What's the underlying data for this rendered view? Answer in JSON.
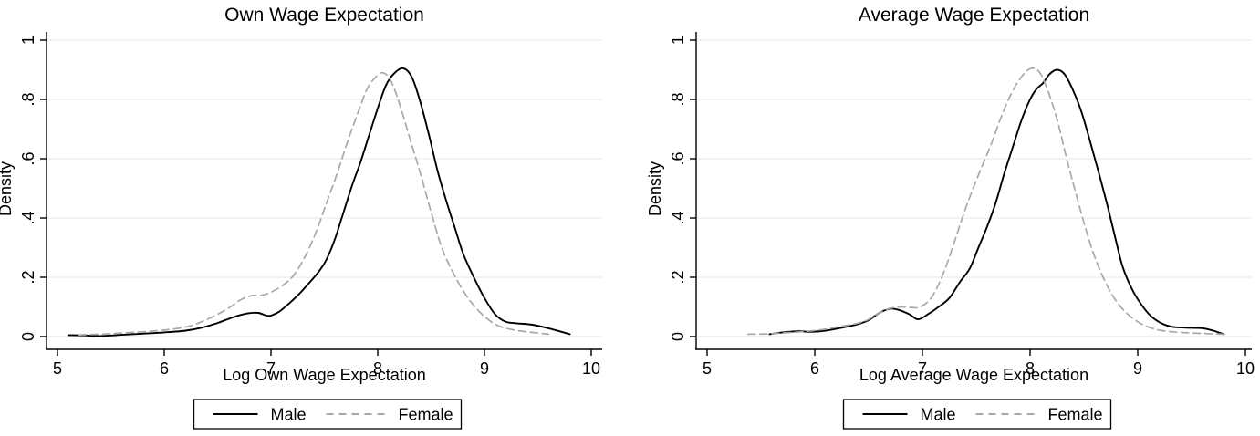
{
  "page": {
    "background": "#ffffff"
  },
  "chart_data": [
    {
      "type": "line",
      "title": "Own Wage Expectation",
      "xlabel": "Log Own Wage Expectation",
      "ylabel": "Density",
      "x_ticks": [
        "5",
        "6",
        "7",
        "8",
        "9",
        "10"
      ],
      "y_ticks": [
        "0",
        ".2",
        ".4",
        ".6",
        ".8",
        "1"
      ],
      "x_tick_values": [
        5,
        6,
        7,
        8,
        9,
        10
      ],
      "y_tick_values": [
        0,
        0.2,
        0.4,
        0.6,
        0.8,
        1
      ],
      "xlim": [
        4.9,
        10.1
      ],
      "ylim": [
        0,
        1
      ],
      "grid": "horizontal",
      "legend_position": "bottom",
      "colors": {
        "male": "#000000",
        "female": "#a8a8a8",
        "grid": "#e7e7e7",
        "axis": "#000000",
        "legend_border": "#000000"
      },
      "series": [
        {
          "name": "Male",
          "style": "solid",
          "color": "#000000",
          "points": [
            [
              5.1,
              0.005
            ],
            [
              5.25,
              0.004
            ],
            [
              5.4,
              0.002
            ],
            [
              5.6,
              0.006
            ],
            [
              5.8,
              0.01
            ],
            [
              6.0,
              0.014
            ],
            [
              6.2,
              0.02
            ],
            [
              6.35,
              0.03
            ],
            [
              6.5,
              0.046
            ],
            [
              6.65,
              0.066
            ],
            [
              6.78,
              0.078
            ],
            [
              6.88,
              0.08
            ],
            [
              6.98,
              0.07
            ],
            [
              7.08,
              0.085
            ],
            [
              7.18,
              0.115
            ],
            [
              7.28,
              0.15
            ],
            [
              7.38,
              0.19
            ],
            [
              7.46,
              0.225
            ],
            [
              7.52,
              0.26
            ],
            [
              7.6,
              0.33
            ],
            [
              7.68,
              0.42
            ],
            [
              7.76,
              0.51
            ],
            [
              7.84,
              0.59
            ],
            [
              7.92,
              0.68
            ],
            [
              8.0,
              0.77
            ],
            [
              8.08,
              0.85
            ],
            [
              8.16,
              0.89
            ],
            [
              8.24,
              0.905
            ],
            [
              8.32,
              0.875
            ],
            [
              8.4,
              0.79
            ],
            [
              8.48,
              0.68
            ],
            [
              8.56,
              0.56
            ],
            [
              8.64,
              0.46
            ],
            [
              8.72,
              0.37
            ],
            [
              8.8,
              0.28
            ],
            [
              8.9,
              0.2
            ],
            [
              9.0,
              0.13
            ],
            [
              9.1,
              0.075
            ],
            [
              9.2,
              0.05
            ],
            [
              9.3,
              0.045
            ],
            [
              9.45,
              0.04
            ],
            [
              9.6,
              0.028
            ],
            [
              9.7,
              0.018
            ],
            [
              9.8,
              0.008
            ]
          ]
        },
        {
          "name": "Female",
          "style": "dashed",
          "color": "#a8a8a8",
          "points": [
            [
              5.2,
              0.006
            ],
            [
              5.4,
              0.008
            ],
            [
              5.6,
              0.012
            ],
            [
              5.8,
              0.016
            ],
            [
              6.0,
              0.022
            ],
            [
              6.2,
              0.032
            ],
            [
              6.35,
              0.05
            ],
            [
              6.5,
              0.075
            ],
            [
              6.62,
              0.1
            ],
            [
              6.72,
              0.125
            ],
            [
              6.82,
              0.138
            ],
            [
              6.92,
              0.14
            ],
            [
              7.0,
              0.15
            ],
            [
              7.12,
              0.175
            ],
            [
              7.22,
              0.21
            ],
            [
              7.32,
              0.27
            ],
            [
              7.42,
              0.35
            ],
            [
              7.52,
              0.45
            ],
            [
              7.62,
              0.55
            ],
            [
              7.72,
              0.66
            ],
            [
              7.82,
              0.76
            ],
            [
              7.9,
              0.835
            ],
            [
              7.98,
              0.875
            ],
            [
              8.05,
              0.89
            ],
            [
              8.12,
              0.865
            ],
            [
              8.2,
              0.79
            ],
            [
              8.3,
              0.67
            ],
            [
              8.4,
              0.55
            ],
            [
              8.5,
              0.42
            ],
            [
              8.6,
              0.3
            ],
            [
              8.7,
              0.22
            ],
            [
              8.8,
              0.155
            ],
            [
              8.9,
              0.105
            ],
            [
              9.0,
              0.068
            ],
            [
              9.1,
              0.042
            ],
            [
              9.2,
              0.028
            ],
            [
              9.35,
              0.018
            ],
            [
              9.5,
              0.012
            ],
            [
              9.6,
              0.008
            ]
          ]
        }
      ]
    },
    {
      "type": "line",
      "title": "Average Wage Expectation",
      "xlabel": "Log Average Wage Expectation",
      "ylabel": "Density",
      "x_ticks": [
        "5",
        "6",
        "7",
        "8",
        "9",
        "10"
      ],
      "y_ticks": [
        "0",
        ".2",
        ".4",
        ".6",
        ".8",
        "1"
      ],
      "x_tick_values": [
        5,
        6,
        7,
        8,
        9,
        10
      ],
      "y_tick_values": [
        0,
        0.2,
        0.4,
        0.6,
        0.8,
        1
      ],
      "xlim": [
        4.9,
        10.1
      ],
      "ylim": [
        0,
        1
      ],
      "grid": "horizontal",
      "legend_position": "bottom",
      "colors": {
        "male": "#000000",
        "female": "#a8a8a8",
        "grid": "#e7e7e7",
        "axis": "#000000",
        "legend_border": "#000000"
      },
      "series": [
        {
          "name": "Male",
          "style": "solid",
          "color": "#000000",
          "points": [
            [
              5.58,
              0.008
            ],
            [
              5.7,
              0.014
            ],
            [
              5.85,
              0.018
            ],
            [
              5.95,
              0.016
            ],
            [
              6.1,
              0.02
            ],
            [
              6.25,
              0.03
            ],
            [
              6.4,
              0.042
            ],
            [
              6.5,
              0.055
            ],
            [
              6.6,
              0.08
            ],
            [
              6.7,
              0.094
            ],
            [
              6.78,
              0.09
            ],
            [
              6.88,
              0.075
            ],
            [
              6.96,
              0.058
            ],
            [
              7.05,
              0.075
            ],
            [
              7.15,
              0.1
            ],
            [
              7.25,
              0.13
            ],
            [
              7.35,
              0.185
            ],
            [
              7.44,
              0.23
            ],
            [
              7.52,
              0.3
            ],
            [
              7.6,
              0.37
            ],
            [
              7.68,
              0.45
            ],
            [
              7.76,
              0.55
            ],
            [
              7.84,
              0.64
            ],
            [
              7.92,
              0.73
            ],
            [
              8.0,
              0.8
            ],
            [
              8.06,
              0.835
            ],
            [
              8.12,
              0.855
            ],
            [
              8.18,
              0.885
            ],
            [
              8.25,
              0.9
            ],
            [
              8.32,
              0.885
            ],
            [
              8.4,
              0.83
            ],
            [
              8.48,
              0.755
            ],
            [
              8.56,
              0.655
            ],
            [
              8.64,
              0.55
            ],
            [
              8.72,
              0.44
            ],
            [
              8.8,
              0.32
            ],
            [
              8.86,
              0.235
            ],
            [
              8.94,
              0.165
            ],
            [
              9.02,
              0.115
            ],
            [
              9.12,
              0.07
            ],
            [
              9.22,
              0.045
            ],
            [
              9.32,
              0.033
            ],
            [
              9.45,
              0.03
            ],
            [
              9.6,
              0.028
            ],
            [
              9.7,
              0.02
            ],
            [
              9.8,
              0.008
            ]
          ]
        },
        {
          "name": "Female",
          "style": "dashed",
          "color": "#a8a8a8",
          "points": [
            [
              5.38,
              0.008
            ],
            [
              5.55,
              0.009
            ],
            [
              5.7,
              0.012
            ],
            [
              5.9,
              0.017
            ],
            [
              6.1,
              0.025
            ],
            [
              6.25,
              0.035
            ],
            [
              6.4,
              0.045
            ],
            [
              6.5,
              0.058
            ],
            [
              6.6,
              0.08
            ],
            [
              6.7,
              0.095
            ],
            [
              6.8,
              0.1
            ],
            [
              6.9,
              0.098
            ],
            [
              6.98,
              0.1
            ],
            [
              7.08,
              0.13
            ],
            [
              7.18,
              0.2
            ],
            [
              7.28,
              0.3
            ],
            [
              7.37,
              0.4
            ],
            [
              7.46,
              0.49
            ],
            [
              7.56,
              0.58
            ],
            [
              7.64,
              0.65
            ],
            [
              7.72,
              0.73
            ],
            [
              7.8,
              0.8
            ],
            [
              7.88,
              0.855
            ],
            [
              7.96,
              0.893
            ],
            [
              8.03,
              0.905
            ],
            [
              8.1,
              0.885
            ],
            [
              8.18,
              0.815
            ],
            [
              8.26,
              0.72
            ],
            [
              8.34,
              0.6
            ],
            [
              8.42,
              0.49
            ],
            [
              8.5,
              0.385
            ],
            [
              8.58,
              0.29
            ],
            [
              8.66,
              0.215
            ],
            [
              8.74,
              0.155
            ],
            [
              8.82,
              0.11
            ],
            [
              8.9,
              0.078
            ],
            [
              9.0,
              0.05
            ],
            [
              9.1,
              0.032
            ],
            [
              9.2,
              0.022
            ],
            [
              9.32,
              0.016
            ],
            [
              9.5,
              0.012
            ],
            [
              9.65,
              0.01
            ],
            [
              9.8,
              0.008
            ]
          ]
        }
      ]
    }
  ]
}
